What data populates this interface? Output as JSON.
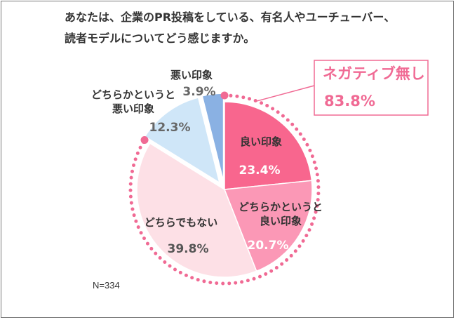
{
  "question": {
    "line1": "あなたは、企業のPR投稿をしている、有名人やユーチューバー、",
    "line2": "読者モデルについてどう感じますか。"
  },
  "sample_size": "N=334",
  "colors": {
    "good": "#f8668e",
    "somewhat_good": "#fb98b6",
    "neither": "#fde0e6",
    "somewhat_bad": "#cfe6f8",
    "bad": "#8ab1e3",
    "accent": "#f06a94",
    "text": "#333333",
    "value_gray": "#666666"
  },
  "chart_data": {
    "type": "pie",
    "title": "あなたは、企業のPR投稿をしている、有名人やユーチューバー、読者モデルについてどう感じますか。",
    "categories": [
      "良い印象",
      "どちらかというと良い印象",
      "どちらでもない",
      "どちらかというと悪い印象",
      "悪い印象"
    ],
    "label_lines": [
      [
        "良い印象"
      ],
      [
        "どちらかというと",
        "良い印象"
      ],
      [
        "どちらでもない"
      ],
      [
        "どちらかというと",
        "悪い印象"
      ],
      [
        "悪い印象"
      ]
    ],
    "values": [
      23.4,
      20.7,
      39.8,
      12.3,
      3.9
    ],
    "value_labels": [
      "23.4%",
      "20.7%",
      "39.8%",
      "12.3%",
      "3.9%"
    ],
    "unit": "%",
    "annotation": {
      "label": "ネガティブ無し",
      "value": "83.8%",
      "covers": [
        "良い印象",
        "どちらかというと良い印象",
        "どちらでもない"
      ]
    }
  }
}
